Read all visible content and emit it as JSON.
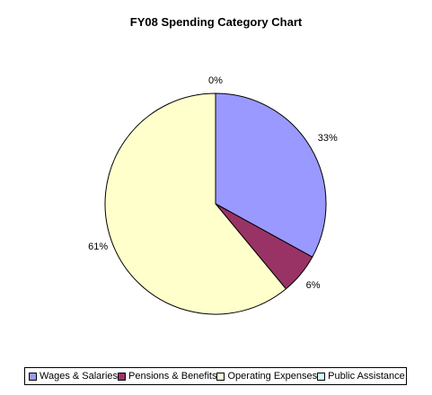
{
  "chart_data": {
    "type": "pie",
    "title": "FY08 Spending Category Chart",
    "categories": [
      "Wages & Salaries",
      "Pensions & Benefits",
      "Operating Expenses",
      "Public Assistance"
    ],
    "values": [
      33,
      6,
      61,
      0
    ],
    "labels": [
      "33%",
      "6%",
      "61%",
      "0%"
    ],
    "colors": [
      "#9999ff",
      "#993366",
      "#ffffcc",
      "#ccffff"
    ],
    "legend_placement": "bottom"
  },
  "legend": {
    "items": [
      {
        "label": "Wages & Salaries",
        "color": "#9999ff"
      },
      {
        "label": "Pensions & Benefits",
        "color": "#993366"
      },
      {
        "label": "Operating Expenses",
        "color": "#ffffcc"
      },
      {
        "label": "Public Assistance",
        "color": "#ccffff"
      }
    ]
  }
}
